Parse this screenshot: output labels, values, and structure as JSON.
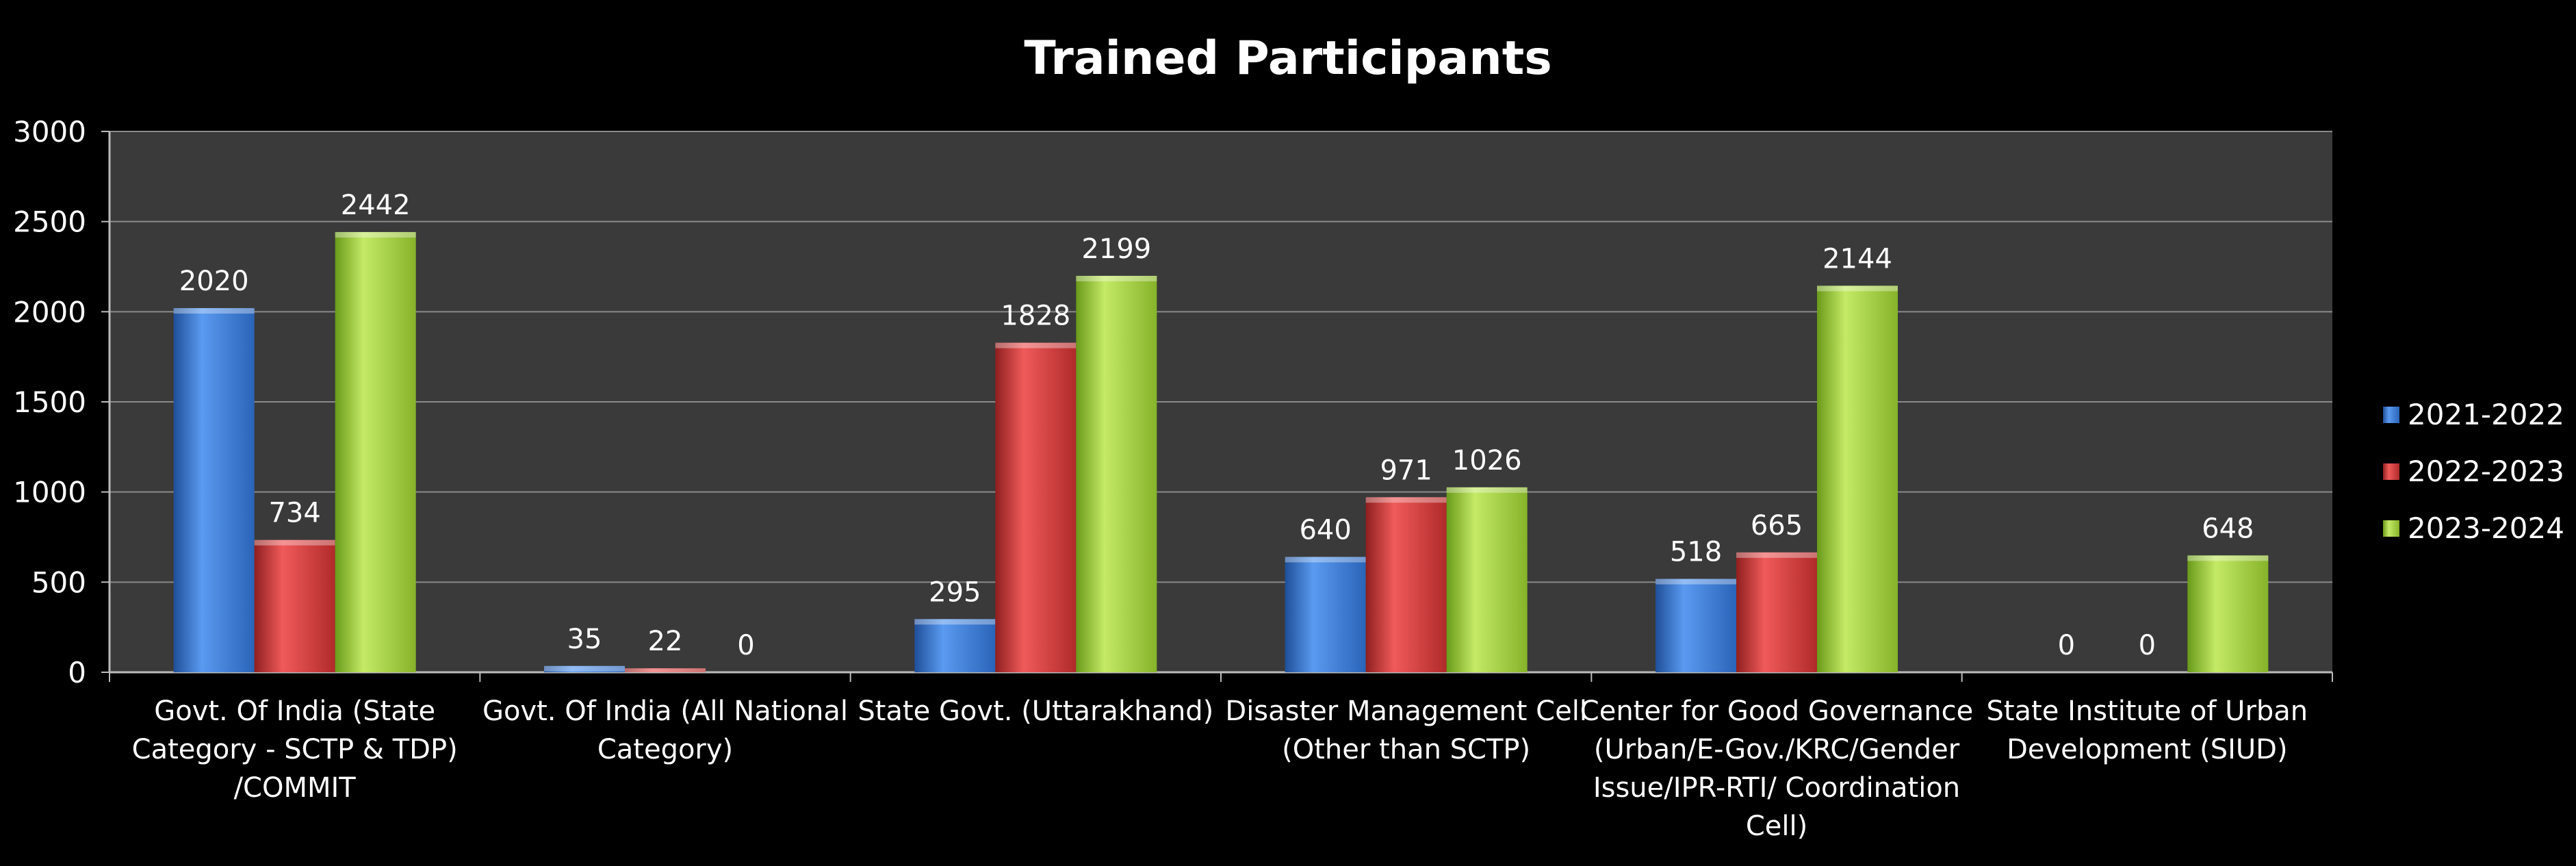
{
  "chart_data": {
    "type": "bar",
    "title": "Trained Participants",
    "xlabel": "",
    "ylabel": "",
    "ylim": [
      0,
      3000
    ],
    "yticks": [
      0,
      500,
      1000,
      1500,
      2000,
      2500,
      3000
    ],
    "grid": true,
    "legend_position": "right",
    "categories": [
      [
        "Govt. Of India (State",
        "Category - SCTP & TDP)",
        "/COMMIT"
      ],
      [
        "Govt. Of India (All National",
        "Category)"
      ],
      [
        "State Govt. (Uttarakhand)"
      ],
      [
        "Disaster Management Cell",
        "(Other than SCTP)"
      ],
      [
        "Center for Good Governance",
        "(Urban/E-Gov./KRC/Gender",
        "Issue/IPR-RTI/ Coordination",
        "Cell)"
      ],
      [
        "State Institute of Urban",
        "Development (SIUD)"
      ]
    ],
    "series": [
      {
        "name": "2021-2022",
        "color": "#3f7fd6",
        "values": [
          2020,
          35,
          295,
          640,
          518,
          0
        ]
      },
      {
        "name": "2022-2023",
        "color": "#d63a3a",
        "values": [
          734,
          22,
          1828,
          971,
          665,
          0
        ]
      },
      {
        "name": "2023-2024",
        "color": "#9ccc3a",
        "values": [
          2442,
          0,
          2199,
          1026,
          2144,
          648
        ]
      }
    ]
  }
}
